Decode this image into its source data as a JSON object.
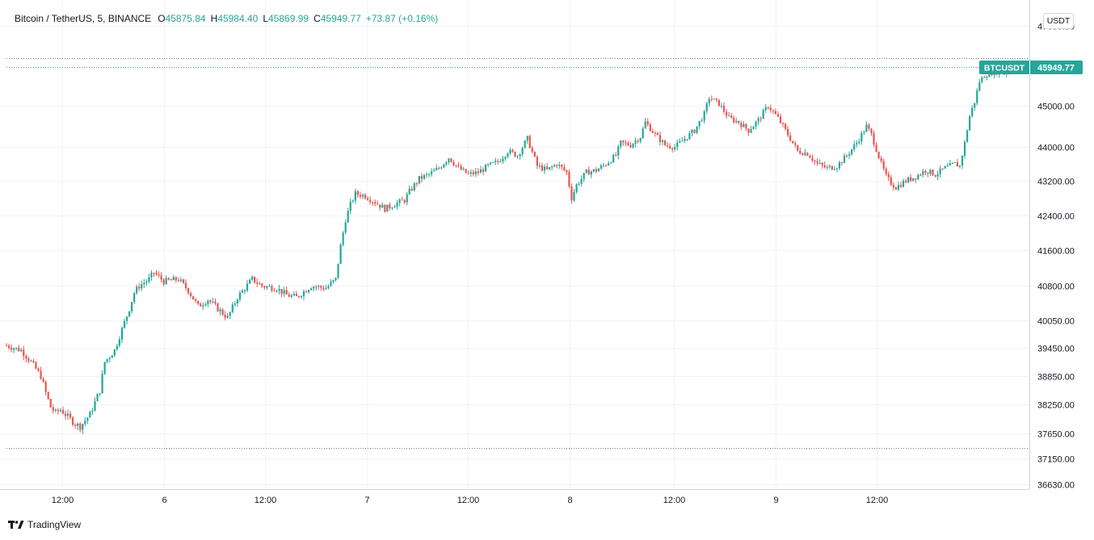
{
  "legend": {
    "symbol": "Bitcoin / TetherUS, 5, BINANCE",
    "o_key": "O",
    "o_val": "45875.84",
    "h_key": "H",
    "h_val": "45984.40",
    "l_key": "L",
    "l_val": "45869.99",
    "c_key": "C",
    "c_val": "45949.77",
    "change": "+73.87 (+0.16%)"
  },
  "unit_badge": "USDT",
  "brand": {
    "name": "TradingView",
    "icon": "tradingview-logo-icon"
  },
  "colors": {
    "up": "#26a69a",
    "down": "#ef5350",
    "grid": "#f0f3fa",
    "text": "#131722",
    "badge_bg": "#26a69a"
  },
  "chart_data": {
    "type": "candlestick",
    "title": "Bitcoin / TetherUS, 5, BINANCE",
    "interval": "5",
    "price_axis_ticks": [
      "47000.00",
      "45000.00",
      "44000.00",
      "43200.00",
      "42400.00",
      "41600.00",
      "40800.00",
      "40050.00",
      "39450.00",
      "38850.00",
      "38250.00",
      "37650.00",
      "37150.00",
      "36630.00"
    ],
    "time_axis_ticks": [
      "12:00",
      "6",
      "12:00",
      "7",
      "12:00",
      "8",
      "12:00",
      "9",
      "12:00"
    ],
    "last_price_label": {
      "symbol": "BTCUSDT",
      "value": "45949.77"
    },
    "period_high_line": 46180,
    "period_low_line": 37360,
    "grid": true,
    "price_scale": "log",
    "price_path": [
      [
        0,
        39500
      ],
      [
        6,
        39400
      ],
      [
        10,
        39150
      ],
      [
        14,
        38850
      ],
      [
        16,
        38500
      ],
      [
        18,
        38200
      ],
      [
        20,
        38080
      ],
      [
        22,
        38150
      ],
      [
        24,
        38050
      ],
      [
        26,
        37950
      ],
      [
        28,
        37850
      ],
      [
        30,
        37800
      ],
      [
        34,
        38050
      ],
      [
        38,
        38550
      ],
      [
        40,
        39150
      ],
      [
        44,
        39400
      ],
      [
        46,
        39700
      ],
      [
        50,
        40300
      ],
      [
        52,
        40650
      ],
      [
        54,
        40800
      ],
      [
        58,
        40950
      ],
      [
        60,
        41100
      ],
      [
        64,
        40900
      ],
      [
        70,
        40950
      ],
      [
        74,
        40700
      ],
      [
        78,
        40350
      ],
      [
        82,
        40500
      ],
      [
        86,
        40300
      ],
      [
        90,
        40100
      ],
      [
        94,
        40550
      ],
      [
        100,
        40950
      ],
      [
        104,
        40800
      ],
      [
        110,
        40750
      ],
      [
        114,
        40600
      ],
      [
        118,
        40550
      ],
      [
        124,
        40800
      ],
      [
        130,
        40750
      ],
      [
        134,
        40950
      ],
      [
        136,
        41700
      ],
      [
        138,
        42300
      ],
      [
        140,
        42650
      ],
      [
        142,
        42900
      ],
      [
        146,
        42850
      ],
      [
        150,
        42700
      ],
      [
        154,
        42550
      ],
      [
        158,
        42650
      ],
      [
        162,
        42750
      ],
      [
        164,
        42950
      ],
      [
        168,
        43250
      ],
      [
        172,
        43350
      ],
      [
        176,
        43500
      ],
      [
        180,
        43750
      ],
      [
        184,
        43500
      ],
      [
        188,
        43350
      ],
      [
        192,
        43400
      ],
      [
        196,
        43550
      ],
      [
        200,
        43650
      ],
      [
        204,
        43900
      ],
      [
        208,
        43800
      ],
      [
        212,
        44200
      ],
      [
        216,
        43550
      ],
      [
        220,
        43450
      ],
      [
        224,
        43600
      ],
      [
        228,
        43400
      ],
      [
        230,
        42800
      ],
      [
        232,
        43100
      ],
      [
        236,
        43400
      ],
      [
        240,
        43450
      ],
      [
        244,
        43600
      ],
      [
        248,
        43800
      ],
      [
        250,
        44100
      ],
      [
        254,
        44050
      ],
      [
        258,
        44250
      ],
      [
        260,
        44600
      ],
      [
        264,
        44300
      ],
      [
        268,
        44050
      ],
      [
        272,
        44000
      ],
      [
        276,
        44200
      ],
      [
        280,
        44400
      ],
      [
        284,
        44800
      ],
      [
        286,
        45200
      ],
      [
        290,
        45050
      ],
      [
        294,
        44700
      ],
      [
        298,
        44600
      ],
      [
        302,
        44400
      ],
      [
        306,
        44650
      ],
      [
        310,
        45000
      ],
      [
        314,
        44700
      ],
      [
        318,
        44300
      ],
      [
        322,
        43900
      ],
      [
        326,
        43850
      ],
      [
        330,
        43600
      ],
      [
        334,
        43500
      ],
      [
        338,
        43550
      ],
      [
        342,
        43800
      ],
      [
        346,
        44100
      ],
      [
        348,
        44300
      ],
      [
        350,
        44500
      ],
      [
        352,
        44300
      ],
      [
        356,
        43600
      ],
      [
        358,
        43300
      ],
      [
        360,
        43150
      ],
      [
        362,
        43050
      ],
      [
        366,
        43200
      ],
      [
        370,
        43300
      ],
      [
        374,
        43450
      ],
      [
        378,
        43350
      ],
      [
        382,
        43500
      ],
      [
        386,
        43600
      ],
      [
        388,
        43550
      ],
      [
        390,
        44100
      ],
      [
        392,
        44750
      ],
      [
        394,
        45100
      ],
      [
        396,
        45600
      ],
      [
        398,
        45750
      ],
      [
        402,
        45850
      ],
      [
        406,
        45800
      ],
      [
        410,
        45950
      ],
      [
        413,
        45950
      ]
    ],
    "candle_count": 414
  }
}
